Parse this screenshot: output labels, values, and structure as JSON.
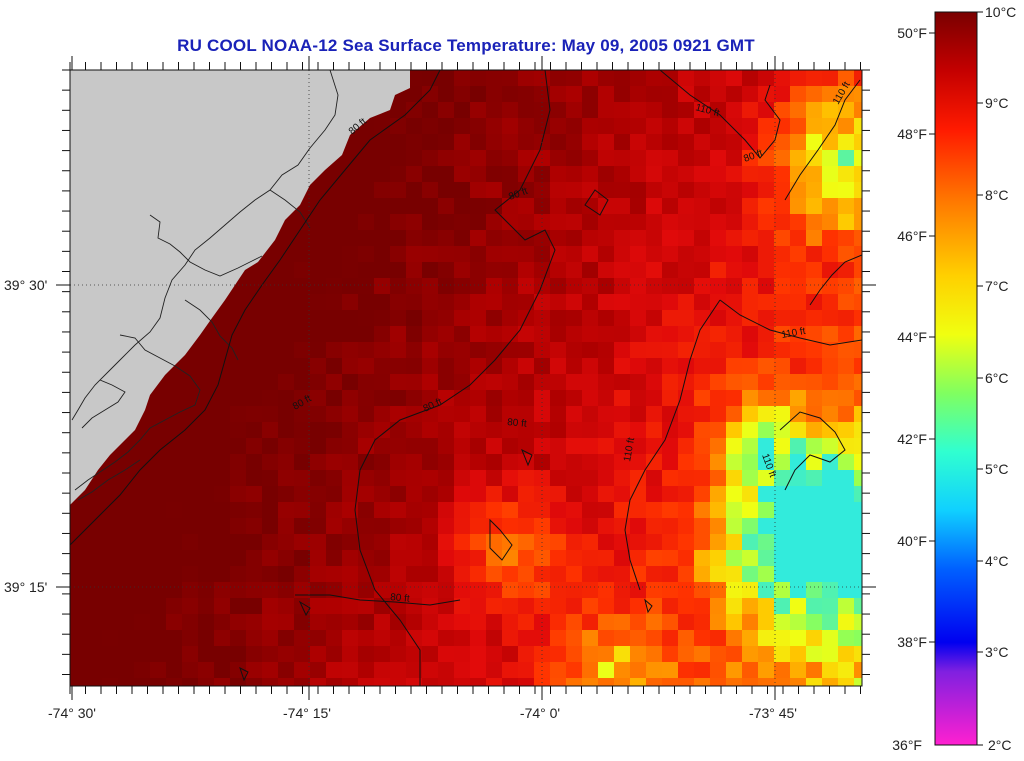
{
  "title": "RU COOL  NOAA-12  Sea Surface Temperature:  May 09, 2005 0921 GMT",
  "axes": {
    "lon_ticks": [
      "-74° 30'",
      "-74° 15'",
      "-74° 0'",
      "-73° 45'"
    ],
    "lat_ticks": [
      "39° 30'",
      "39° 15'"
    ]
  },
  "contour_labels": [
    "110 ft",
    "80 ft",
    "80 ft",
    "80 ft",
    "110 ft",
    "80 ft",
    "80 ft",
    "110 ft",
    "110 ft",
    "110 ft",
    "80 ft"
  ],
  "colorbar": {
    "fahrenheit": [
      "50°F",
      "48°F",
      "46°F",
      "44°F",
      "42°F",
      "40°F",
      "38°F",
      "36°F"
    ],
    "celsius": [
      "10°C",
      "9°C",
      "8°C",
      "7°C",
      "6°C",
      "5°C",
      "4°C",
      "3°C",
      "2°C"
    ]
  },
  "colors": {
    "land": "#c8c8c8",
    "title": "#1a22b8",
    "warm": "#8b0000",
    "cool": "#30e0d0"
  }
}
